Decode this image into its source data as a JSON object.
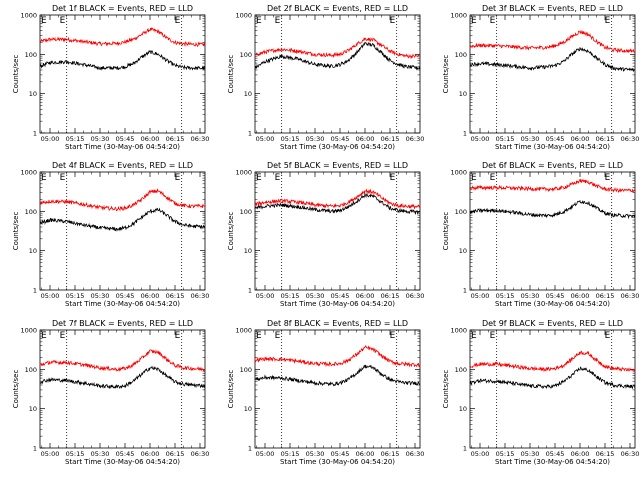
{
  "colors": {
    "events": "#000000",
    "lld": "#ff0000",
    "axes": "#000000",
    "background": "#ffffff"
  },
  "chart_data": [
    {
      "type": "line",
      "title": "Det 1f BLACK = Events, RED = LLD",
      "xlabel": "Start Time (30-May-06 04:54:20)",
      "ylabel": "Counts/sec",
      "y_scale": "log",
      "ylim": [
        1,
        1000
      ],
      "x_tick_labels": [
        "05:00",
        "05:15",
        "05:30",
        "05:45",
        "06:00",
        "06:15",
        "06:30"
      ],
      "xlim": [
        "04:54",
        "06:33"
      ],
      "marker_times": [
        "05:10",
        "06:19"
      ],
      "marker_label": "E",
      "series": [
        {
          "x": [
            "04:54",
            "05:00",
            "05:10",
            "05:20",
            "05:30",
            "05:40",
            "05:45",
            "05:50",
            "05:55",
            "06:00",
            "06:05",
            "06:10",
            "06:15",
            "06:20",
            "06:25",
            "06:33"
          ],
          "values": [
            210,
            240,
            240,
            210,
            185,
            190,
            205,
            240,
            320,
            430,
            380,
            260,
            200,
            185,
            180,
            175
          ]
        },
        {
          "x": [
            "04:54",
            "05:00",
            "05:10",
            "05:20",
            "05:30",
            "05:40",
            "05:45",
            "05:50",
            "05:55",
            "06:00",
            "06:05",
            "06:10",
            "06:15",
            "06:20",
            "06:25",
            "06:33"
          ],
          "values": [
            50,
            62,
            65,
            55,
            45,
            45,
            48,
            58,
            85,
            115,
            100,
            70,
            52,
            46,
            45,
            44
          ]
        }
      ]
    },
    {
      "type": "line",
      "title": "Det 2f BLACK = Events, RED = LLD",
      "xlabel": "Start Time (30-May-06 04:54:20)",
      "ylabel": "Counts/sec",
      "y_scale": "log",
      "ylim": [
        1,
        1000
      ],
      "x_tick_labels": [
        "05:00",
        "05:15",
        "05:30",
        "05:45",
        "06:00",
        "06:15",
        "06:30"
      ],
      "xlim": [
        "04:54",
        "06:33"
      ],
      "marker_times": [
        "05:10",
        "06:19"
      ],
      "marker_label": "E",
      "series": [
        {
          "x": [
            "04:54",
            "05:00",
            "05:10",
            "05:20",
            "05:30",
            "05:40",
            "05:45",
            "05:50",
            "05:55",
            "06:00",
            "06:05",
            "06:10",
            "06:15",
            "06:20",
            "06:25",
            "06:33"
          ],
          "values": [
            95,
            115,
            135,
            120,
            100,
            95,
            100,
            125,
            180,
            250,
            230,
            170,
            120,
            100,
            90,
            90
          ]
        },
        {
          "x": [
            "04:54",
            "05:00",
            "05:10",
            "05:20",
            "05:30",
            "05:40",
            "05:45",
            "05:50",
            "05:55",
            "06:00",
            "06:05",
            "06:10",
            "06:15",
            "06:20",
            "06:25",
            "06:33"
          ],
          "values": [
            45,
            65,
            90,
            75,
            55,
            50,
            55,
            70,
            110,
            190,
            170,
            110,
            70,
            55,
            48,
            45
          ]
        }
      ]
    },
    {
      "type": "line",
      "title": "Det 3f BLACK = Events, RED = LLD",
      "xlabel": "Start Time (30-May-06 04:54:20)",
      "ylabel": "Counts/sec",
      "y_scale": "log",
      "ylim": [
        1,
        1000
      ],
      "x_tick_labels": [
        "05:00",
        "05:15",
        "05:30",
        "05:45",
        "06:00",
        "06:15",
        "06:30"
      ],
      "xlim": [
        "04:54",
        "06:33"
      ],
      "marker_times": [
        "05:10",
        "06:19"
      ],
      "marker_label": "E",
      "series": [
        {
          "x": [
            "04:54",
            "05:00",
            "05:10",
            "05:20",
            "05:30",
            "05:40",
            "05:45",
            "05:50",
            "05:55",
            "06:00",
            "06:05",
            "06:10",
            "06:15",
            "06:20",
            "06:25",
            "06:33"
          ],
          "values": [
            160,
            170,
            165,
            155,
            145,
            150,
            165,
            200,
            280,
            380,
            320,
            210,
            150,
            130,
            125,
            120
          ]
        },
        {
          "x": [
            "04:54",
            "05:00",
            "05:10",
            "05:20",
            "05:30",
            "05:40",
            "05:45",
            "05:50",
            "05:55",
            "06:00",
            "06:05",
            "06:10",
            "06:15",
            "06:20",
            "06:25",
            "06:33"
          ],
          "values": [
            55,
            58,
            55,
            50,
            45,
            48,
            52,
            65,
            100,
            140,
            120,
            80,
            55,
            45,
            42,
            40
          ]
        }
      ]
    },
    {
      "type": "line",
      "title": "Det 4f BLACK = Events, RED = LLD",
      "xlabel": "Start Time (30-May-06 04:54:20)",
      "ylabel": "Counts/sec",
      "y_scale": "log",
      "ylim": [
        1,
        1000
      ],
      "x_tick_labels": [
        "05:00",
        "05:15",
        "05:30",
        "05:45",
        "06:00",
        "06:15",
        "06:30"
      ],
      "xlim": [
        "04:54",
        "06:33"
      ],
      "marker_times": [
        "05:10",
        "06:19"
      ],
      "marker_label": "E",
      "series": [
        {
          "x": [
            "04:54",
            "05:00",
            "05:10",
            "05:20",
            "05:30",
            "05:40",
            "05:45",
            "05:50",
            "05:55",
            "06:00",
            "06:05",
            "06:10",
            "06:15",
            "06:20",
            "06:25",
            "06:33"
          ],
          "values": [
            165,
            180,
            175,
            150,
            125,
            115,
            120,
            145,
            200,
            310,
            330,
            230,
            160,
            140,
            135,
            135
          ]
        },
        {
          "x": [
            "04:54",
            "05:00",
            "05:10",
            "05:20",
            "05:30",
            "05:40",
            "05:45",
            "05:50",
            "05:55",
            "06:00",
            "06:05",
            "06:10",
            "06:15",
            "06:20",
            "06:25",
            "06:33"
          ],
          "values": [
            50,
            60,
            55,
            45,
            38,
            35,
            38,
            48,
            70,
            100,
            110,
            80,
            55,
            45,
            42,
            40
          ]
        }
      ]
    },
    {
      "type": "line",
      "title": "Det 5f BLACK = Events, RED = LLD",
      "xlabel": "Start Time (30-May-06 04:54:20)",
      "ylabel": "Counts/sec",
      "y_scale": "log",
      "ylim": [
        1,
        1000
      ],
      "x_tick_labels": [
        "05:00",
        "05:15",
        "05:30",
        "05:45",
        "06:00",
        "06:15",
        "06:30"
      ],
      "xlim": [
        "04:54",
        "06:33"
      ],
      "marker_times": [
        "05:10",
        "06:19"
      ],
      "marker_label": "E",
      "series": [
        {
          "x": [
            "04:54",
            "05:00",
            "05:10",
            "05:20",
            "05:30",
            "05:40",
            "05:45",
            "05:50",
            "05:55",
            "06:00",
            "06:05",
            "06:10",
            "06:15",
            "06:20",
            "06:25",
            "06:33"
          ],
          "values": [
            150,
            170,
            185,
            170,
            145,
            135,
            140,
            170,
            230,
            330,
            310,
            220,
            160,
            140,
            135,
            130
          ]
        },
        {
          "x": [
            "04:54",
            "05:00",
            "05:10",
            "05:20",
            "05:30",
            "05:40",
            "05:45",
            "05:50",
            "05:55",
            "06:00",
            "06:05",
            "06:10",
            "06:15",
            "06:20",
            "06:25",
            "06:33"
          ],
          "values": [
            120,
            135,
            145,
            130,
            110,
            100,
            105,
            130,
            180,
            260,
            240,
            170,
            120,
            105,
            100,
            95
          ]
        }
      ]
    },
    {
      "type": "line",
      "title": "Det 6f BLACK = Events, RED = LLD",
      "xlabel": "Start Time (30-May-06 04:54:20)",
      "ylabel": "Counts/sec",
      "y_scale": "log",
      "ylim": [
        1,
        1000
      ],
      "x_tick_labels": [
        "05:00",
        "05:15",
        "05:30",
        "05:45",
        "06:00",
        "06:15",
        "06:30"
      ],
      "xlim": [
        "04:54",
        "06:33"
      ],
      "marker_times": [
        "05:10",
        "06:19"
      ],
      "marker_label": "E",
      "series": [
        {
          "x": [
            "04:54",
            "05:00",
            "05:10",
            "05:20",
            "05:30",
            "05:40",
            "05:45",
            "05:50",
            "05:55",
            "06:00",
            "06:05",
            "06:10",
            "06:15",
            "06:20",
            "06:25",
            "06:33"
          ],
          "values": [
            390,
            400,
            400,
            390,
            375,
            365,
            370,
            400,
            480,
            600,
            560,
            440,
            370,
            350,
            340,
            340
          ]
        },
        {
          "x": [
            "04:54",
            "05:00",
            "05:10",
            "05:20",
            "05:30",
            "05:40",
            "05:45",
            "05:50",
            "05:55",
            "06:00",
            "06:05",
            "06:10",
            "06:15",
            "06:20",
            "06:25",
            "06:33"
          ],
          "values": [
            95,
            105,
            105,
            95,
            82,
            78,
            82,
            98,
            130,
            180,
            165,
            120,
            90,
            80,
            78,
            75
          ]
        }
      ]
    },
    {
      "type": "line",
      "title": "Det 7f BLACK = Events, RED = LLD",
      "xlabel": "Start Time (30-May-06 04:54:20)",
      "ylabel": "Counts/sec",
      "y_scale": "log",
      "ylim": [
        1,
        1000
      ],
      "x_tick_labels": [
        "05:00",
        "05:15",
        "05:30",
        "05:45",
        "06:00",
        "06:15",
        "06:30"
      ],
      "xlim": [
        "04:54",
        "06:33"
      ],
      "marker_times": [
        "05:10",
        "06:19"
      ],
      "marker_label": "E",
      "series": [
        {
          "x": [
            "04:54",
            "05:00",
            "05:10",
            "05:20",
            "05:30",
            "05:40",
            "05:45",
            "05:50",
            "05:55",
            "06:00",
            "06:05",
            "06:10",
            "06:15",
            "06:20",
            "06:25",
            "06:33"
          ],
          "values": [
            130,
            150,
            150,
            130,
            110,
            100,
            105,
            130,
            190,
            290,
            270,
            180,
            125,
            110,
            105,
            100
          ]
        },
        {
          "x": [
            "04:54",
            "05:00",
            "05:10",
            "05:20",
            "05:30",
            "05:40",
            "05:45",
            "05:50",
            "05:55",
            "06:00",
            "06:05",
            "06:10",
            "06:15",
            "06:20",
            "06:25",
            "06:33"
          ],
          "values": [
            48,
            55,
            52,
            45,
            38,
            36,
            38,
            50,
            75,
            110,
            100,
            68,
            48,
            42,
            40,
            38
          ]
        }
      ]
    },
    {
      "type": "line",
      "title": "Det 8f BLACK = Events, RED = LLD",
      "xlabel": "Start Time (30-May-06 04:54:20)",
      "ylabel": "Counts/sec",
      "y_scale": "log",
      "ylim": [
        1,
        1000
      ],
      "x_tick_labels": [
        "05:00",
        "05:15",
        "05:30",
        "05:45",
        "06:00",
        "06:15",
        "06:30"
      ],
      "xlim": [
        "04:54",
        "06:33"
      ],
      "marker_times": [
        "05:10",
        "06:19"
      ],
      "marker_label": "E",
      "series": [
        {
          "x": [
            "04:54",
            "05:00",
            "05:10",
            "05:20",
            "05:30",
            "05:40",
            "05:45",
            "05:50",
            "05:55",
            "06:00",
            "06:05",
            "06:10",
            "06:15",
            "06:20",
            "06:25",
            "06:33"
          ],
          "values": [
            170,
            185,
            180,
            160,
            140,
            135,
            140,
            170,
            240,
            360,
            320,
            220,
            160,
            140,
            135,
            130
          ]
        },
        {
          "x": [
            "04:54",
            "05:00",
            "05:10",
            "05:20",
            "05:30",
            "05:40",
            "05:45",
            "05:50",
            "05:55",
            "06:00",
            "06:05",
            "06:10",
            "06:15",
            "06:20",
            "06:25",
            "06:33"
          ],
          "values": [
            55,
            62,
            60,
            52,
            45,
            42,
            45,
            55,
            80,
            120,
            110,
            75,
            55,
            48,
            45,
            44
          ]
        }
      ]
    },
    {
      "type": "line",
      "title": "Det 9f BLACK = Events, RED = LLD",
      "xlabel": "Start Time (30-May-06 04:54:20)",
      "ylabel": "Counts/sec",
      "y_scale": "log",
      "ylim": [
        1,
        1000
      ],
      "x_tick_labels": [
        "05:00",
        "05:15",
        "05:30",
        "05:45",
        "06:00",
        "06:15",
        "06:30"
      ],
      "xlim": [
        "04:54",
        "06:33"
      ],
      "marker_times": [
        "05:10",
        "06:19"
      ],
      "marker_label": "E",
      "series": [
        {
          "x": [
            "04:54",
            "05:00",
            "05:10",
            "05:20",
            "05:30",
            "05:40",
            "05:45",
            "05:50",
            "05:55",
            "06:00",
            "06:05",
            "06:10",
            "06:15",
            "06:20",
            "06:25",
            "06:33"
          ],
          "values": [
            120,
            135,
            135,
            120,
            105,
            100,
            105,
            125,
            180,
            270,
            250,
            170,
            120,
            105,
            100,
            95
          ]
        },
        {
          "x": [
            "04:54",
            "05:00",
            "05:10",
            "05:20",
            "05:30",
            "05:40",
            "05:45",
            "05:50",
            "05:55",
            "06:00",
            "06:05",
            "06:10",
            "06:15",
            "06:20",
            "06:25",
            "06:33"
          ],
          "values": [
            45,
            52,
            50,
            44,
            38,
            36,
            38,
            48,
            70,
            105,
            95,
            65,
            46,
            40,
            38,
            36
          ]
        }
      ]
    }
  ]
}
